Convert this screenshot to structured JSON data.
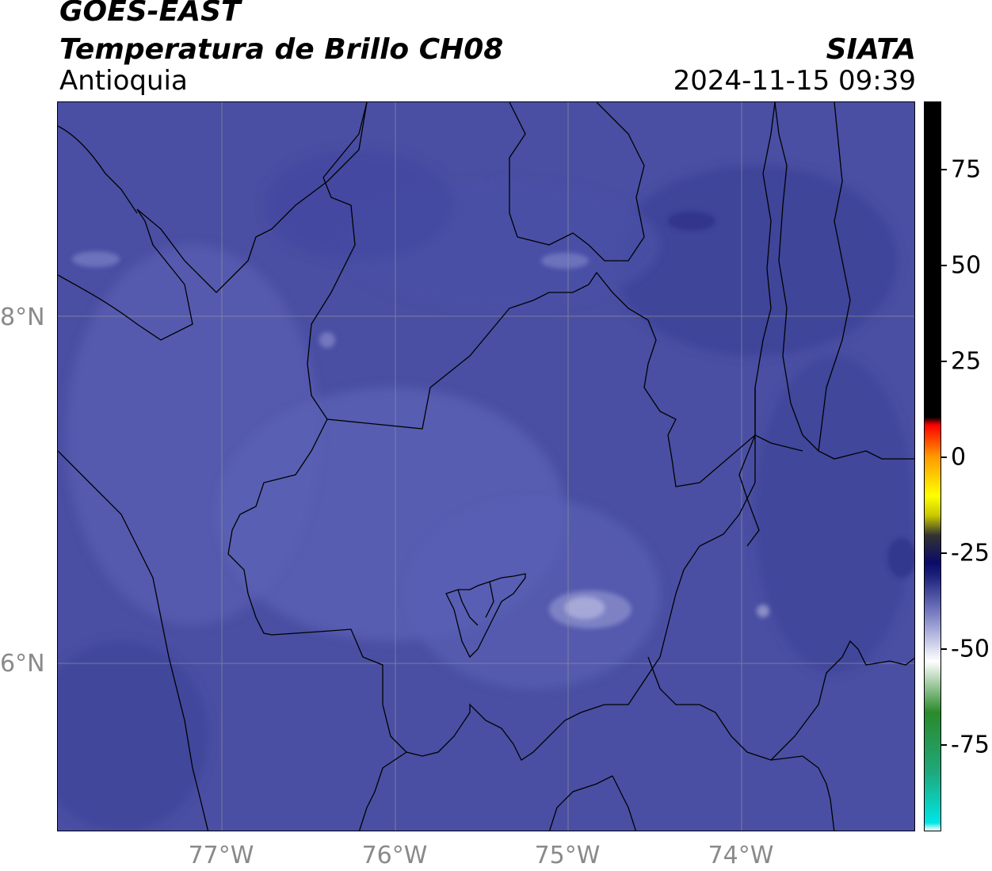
{
  "header": {
    "title_line1": "GOES-EAST",
    "title_line2": "Temperatura de Brillo CH08",
    "region": "Antioquia",
    "brand": "SIATA",
    "timestamp": "2024-11-15 09:39"
  },
  "map": {
    "lat_ticks": [
      "8°N",
      "6°N"
    ],
    "lon_ticks": [
      "77°W",
      "76°W",
      "75°W",
      "74°W"
    ],
    "base_color": "#4a4fa3",
    "grid_color": "#9a9a9a",
    "boundary_color": "#000000"
  },
  "colorbar": {
    "ticks": [
      "75",
      "50",
      "25",
      "0",
      "-25",
      "-50",
      "-75"
    ],
    "stops": [
      {
        "value": -95,
        "color": "#ffffff"
      },
      {
        "value": -93,
        "color": "#00e5e5"
      },
      {
        "value": -80,
        "color": "#1fa87a"
      },
      {
        "value": -65,
        "color": "#2a8a2a"
      },
      {
        "value": -52,
        "color": "#ffffff"
      },
      {
        "value": -40,
        "color": "#7a7fc4"
      },
      {
        "value": -30,
        "color": "#1a1f7a"
      },
      {
        "value": -27,
        "color": "#0a0a6a"
      },
      {
        "value": -20,
        "color": "#333333"
      },
      {
        "value": -15,
        "color": "#c8c800"
      },
      {
        "value": -10,
        "color": "#ffff00"
      },
      {
        "value": 0,
        "color": "#ff9900"
      },
      {
        "value": 8,
        "color": "#ff0000"
      },
      {
        "value": 10,
        "color": "#000000"
      },
      {
        "value": 90,
        "color": "#000000"
      }
    ]
  }
}
